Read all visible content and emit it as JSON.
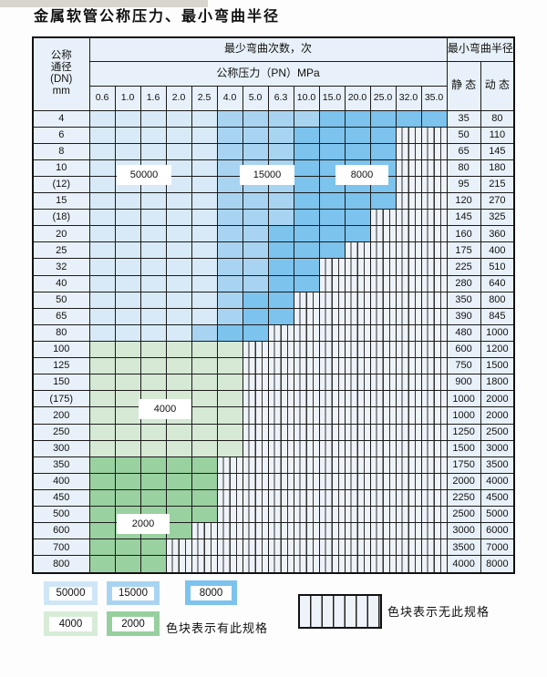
{
  "title": "金属软管公称压力、最小弯曲半径",
  "chart_data": {
    "type": "table",
    "title": "金属软管公称压力、最小弯曲半径",
    "col_group_label": "最少弯曲次数，次",
    "pressure_label": "公称压力（PN）MPa",
    "radius_label": "最小弯曲半径",
    "static_label": "静 态",
    "dynamic_label": "动 态",
    "dn_label_lines": [
      "公称",
      "通径",
      "(DN)",
      "mm"
    ],
    "pressures": [
      "0.6",
      "1.0",
      "1.6",
      "2.0",
      "2.5",
      "4.0",
      "5.0",
      "6.3",
      "10.0",
      "15.0",
      "20.0",
      "25.0",
      "32.0",
      "35.0"
    ],
    "zone_bend_cycles": {
      "blue_light": 50000,
      "blue_medium": 15000,
      "blue_dark": 8000,
      "green_light": 4000,
      "green_dark": 2000
    },
    "rows": [
      {
        "dn": "4",
        "static": "35",
        "dynamic": "80",
        "last": 13,
        "med": 5,
        "dark": 9,
        "c": "blue"
      },
      {
        "dn": "6",
        "static": "50",
        "dynamic": "110",
        "last": 11,
        "med": 5,
        "dark": 8,
        "c": "blue"
      },
      {
        "dn": "8",
        "static": "65",
        "dynamic": "145",
        "last": 11,
        "med": 5,
        "dark": 8,
        "c": "blue"
      },
      {
        "dn": "10",
        "static": "80",
        "dynamic": "180",
        "last": 11,
        "med": 5,
        "dark": 8,
        "c": "blue"
      },
      {
        "dn": "(12)",
        "static": "95",
        "dynamic": "215",
        "last": 11,
        "med": 5,
        "dark": 8,
        "c": "blue"
      },
      {
        "dn": "15",
        "static": "120",
        "dynamic": "270",
        "last": 11,
        "med": 5,
        "dark": 8,
        "c": "blue"
      },
      {
        "dn": "(18)",
        "static": "145",
        "dynamic": "325",
        "last": 10,
        "med": 5,
        "dark": 8,
        "c": "blue"
      },
      {
        "dn": "20",
        "static": "160",
        "dynamic": "360",
        "last": 10,
        "med": 5,
        "dark": 7,
        "c": "blue"
      },
      {
        "dn": "25",
        "static": "175",
        "dynamic": "400",
        "last": 9,
        "med": 5,
        "dark": 7,
        "c": "blue"
      },
      {
        "dn": "32",
        "static": "225",
        "dynamic": "510",
        "last": 8,
        "med": 5,
        "dark": 7,
        "c": "blue"
      },
      {
        "dn": "40",
        "static": "280",
        "dynamic": "640",
        "last": 8,
        "med": 5,
        "dark": 7,
        "c": "blue"
      },
      {
        "dn": "50",
        "static": "350",
        "dynamic": "800",
        "last": 7,
        "med": 5,
        "dark": 6,
        "c": "blue"
      },
      {
        "dn": "65",
        "static": "390",
        "dynamic": "845",
        "last": 7,
        "med": 5,
        "dark": 6,
        "c": "blue"
      },
      {
        "dn": "80",
        "static": "480",
        "dynamic": "1000",
        "last": 6,
        "med": 4,
        "dark": 5,
        "c": "blue"
      },
      {
        "dn": "100",
        "static": "600",
        "dynamic": "1200",
        "last": 5,
        "c": "g1"
      },
      {
        "dn": "125",
        "static": "750",
        "dynamic": "1500",
        "last": 5,
        "c": "g1"
      },
      {
        "dn": "150",
        "static": "900",
        "dynamic": "1800",
        "last": 5,
        "c": "g1"
      },
      {
        "dn": "(175)",
        "static": "1000",
        "dynamic": "2000",
        "last": 5,
        "c": "g1"
      },
      {
        "dn": "200",
        "static": "1000",
        "dynamic": "2000",
        "last": 5,
        "c": "g1"
      },
      {
        "dn": "250",
        "static": "1250",
        "dynamic": "2500",
        "last": 5,
        "c": "g1"
      },
      {
        "dn": "300",
        "static": "1500",
        "dynamic": "3000",
        "last": 5,
        "c": "g1"
      },
      {
        "dn": "350",
        "static": "1750",
        "dynamic": "3500",
        "last": 4,
        "c": "g2"
      },
      {
        "dn": "400",
        "static": "2000",
        "dynamic": "4000",
        "last": 4,
        "c": "g2"
      },
      {
        "dn": "450",
        "static": "2250",
        "dynamic": "4500",
        "last": 4,
        "c": "g2"
      },
      {
        "dn": "500",
        "static": "2500",
        "dynamic": "5000",
        "last": 4,
        "c": "g2"
      },
      {
        "dn": "600",
        "static": "3000",
        "dynamic": "6000",
        "last": 3,
        "c": "g2"
      },
      {
        "dn": "700",
        "static": "3500",
        "dynamic": "7000",
        "last": 2,
        "c": "g2"
      },
      {
        "dn": "800",
        "static": "4000",
        "dynamic": "8000",
        "last": 2,
        "c": "g2"
      }
    ]
  },
  "overlays": [
    {
      "text": "50000"
    },
    {
      "text": "15000"
    },
    {
      "text": "8000"
    },
    {
      "text": "4000"
    },
    {
      "text": "2000"
    }
  ],
  "legend": {
    "items": [
      {
        "value": "50000",
        "color": "#cfe6f7"
      },
      {
        "value": "15000",
        "color": "#a9d4f1"
      },
      {
        "value": "8000",
        "color": "#7cc3ed"
      },
      {
        "value": "4000",
        "color": "#d7ecd7"
      },
      {
        "value": "2000",
        "color": "#97d09e"
      }
    ],
    "has_spec_text": "色块表示有此规格",
    "no_spec_text": "色块表示无此规格"
  },
  "colors": {
    "blue_light": "#d8eaf8",
    "blue_medium": "#a9d4f1",
    "blue_dark": "#7cc3ed",
    "green_light": "#d5e9d4",
    "green_dark": "#9ad1a0",
    "header_bg": "#e8f1f9",
    "hatch_bg": "#eef3fa",
    "border": "#1b1b1b"
  }
}
